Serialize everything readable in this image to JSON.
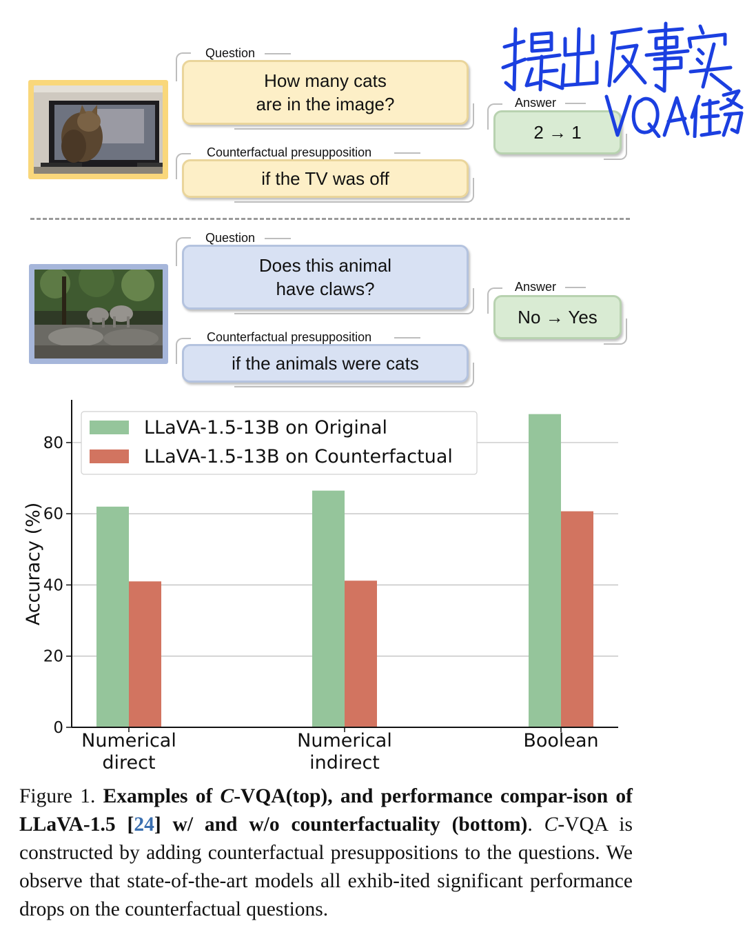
{
  "examples": [
    {
      "question_label": "Question",
      "question": "How many cats\nare in the image?",
      "presupposition_label": "Counterfactual presupposition",
      "presupposition": "if the TV was off",
      "answer_label": "Answer",
      "answer": "2 → 1",
      "color_scheme": "yellow",
      "image_desc": "cat-in-front-of-tv-photo"
    },
    {
      "question_label": "Question",
      "question": "Does this animal\nhave claws?",
      "presupposition_label": "Counterfactual presupposition",
      "presupposition": "if the animals were cats",
      "answer_label": "Answer",
      "answer": "No → Yes",
      "color_scheme": "blue",
      "image_desc": "elephants-photo"
    }
  ],
  "handwriting": "提出反事实VQA任务",
  "chart_data": {
    "type": "bar",
    "categories": [
      "Numerical\ndirect",
      "Numerical\nindirect",
      "Boolean"
    ],
    "series": [
      {
        "name": "LLaVA-1.5-13B on Original",
        "values": [
          62,
          66.5,
          88
        ],
        "color": "#95c59b"
      },
      {
        "name": "LLaVA-1.5-13B on Counterfactual",
        "values": [
          41,
          41.2,
          60.7
        ],
        "color": "#d27460"
      }
    ],
    "ylabel": "Accuracy (%)",
    "xlabel": "",
    "ylim": [
      0,
      90
    ],
    "yticks": [
      0,
      20,
      40,
      60,
      80
    ],
    "grid": true,
    "legend_position": "upper-left"
  },
  "caption": {
    "prefix": "Figure 1.",
    "bold_1": "Examples of ",
    "bold_italic": "C",
    "bold_2": "-VQA(top), and performance compar-ison of LLaVA-1.5 [",
    "cite": "24",
    "bold_3": "] w/ and w/o counterfactuality (bottom)",
    "rest_1": ". ",
    "italic": "C",
    "rest_2": "-VQA  is constructed by adding counterfactual presuppositions to the questions. We observe that state-of-the-art models all exhib-ited significant performance drops on the counterfactual questions."
  }
}
